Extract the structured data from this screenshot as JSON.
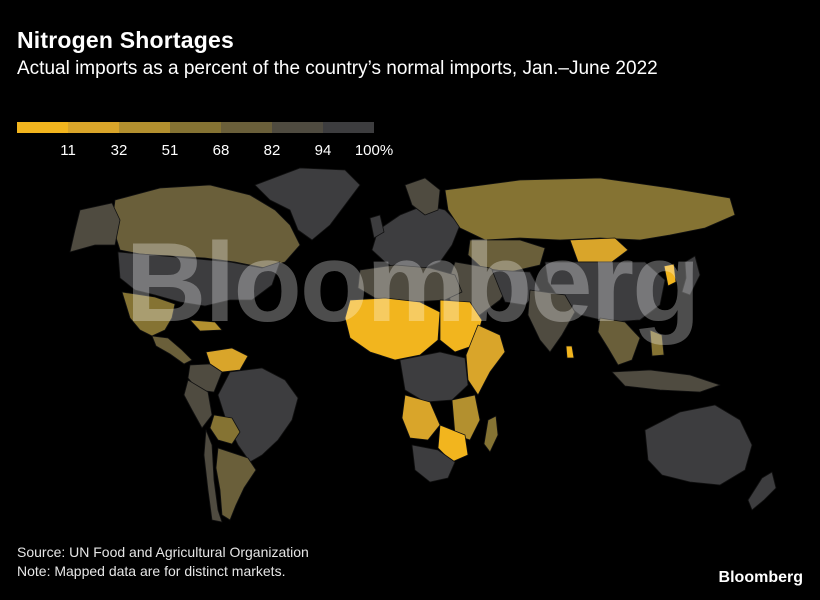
{
  "header": {
    "title": "Nitrogen Shortages",
    "subtitle": "Actual imports as a percent of the country’s normal imports, Jan.–June 2022"
  },
  "legend": {
    "bins": [
      {
        "label": "11",
        "color": "#f2b51e"
      },
      {
        "label": "32",
        "color": "#d9a52a"
      },
      {
        "label": "51",
        "color": "#b3902f"
      },
      {
        "label": "68",
        "color": "#857333"
      },
      {
        "label": "82",
        "color": "#6a5f3a"
      },
      {
        "label": "94",
        "color": "#4f4b40"
      },
      {
        "label": "100%",
        "color": "#3d3d3f"
      }
    ]
  },
  "map": {
    "watermark": "Bloomberg",
    "ocean_color": "#000000",
    "border_color": "#1a1a1a"
  },
  "footer": {
    "source": "Source: UN Food and Agricultural Organization",
    "note": "Note: Mapped data are for distinct markets.",
    "brand": "Bloomberg"
  }
}
